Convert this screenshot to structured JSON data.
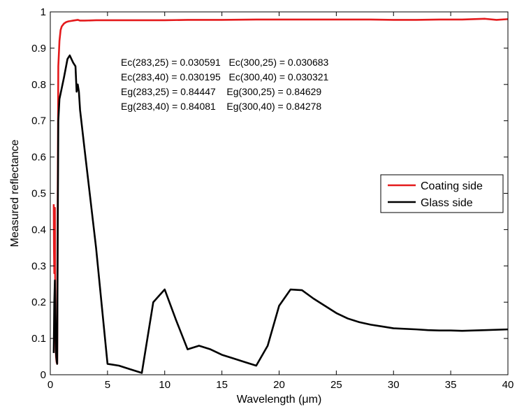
{
  "chart_data": {
    "type": "line",
    "title": "",
    "xlabel": "Wavelength (μm)",
    "ylabel": "Measured reflectance",
    "xlim": [
      0,
      40
    ],
    "ylim": [
      0,
      1
    ],
    "xticks": [
      0,
      5,
      10,
      15,
      20,
      25,
      30,
      35,
      40
    ],
    "xtick_labels": [
      "0",
      "5",
      "10",
      "15",
      "20",
      "25",
      "30",
      "35",
      "40"
    ],
    "yticks": [
      0,
      0.1,
      0.2,
      0.3,
      0.4,
      0.5,
      0.6,
      0.7,
      0.8,
      0.9,
      1
    ],
    "ytick_labels": [
      "0",
      "0.1",
      "0.2",
      "0.3",
      "0.4",
      "0.5",
      "0.6",
      "0.7",
      "0.8",
      "0.9",
      "1"
    ],
    "grid": false,
    "legend_position": "center-right",
    "annotations": [
      "Ec(283,25) = 0.030591   Ec(300,25) = 0.030683",
      "Ec(283,40) = 0.030195   Ec(300,40) = 0.030321",
      "Eg(283,25) = 0.84447    Eg(300,25) = 0.84629",
      "Eg(283,40) = 0.84081    Eg(300,40) = 0.84278"
    ],
    "series": [
      {
        "name": "Coating side",
        "color": "#e41a1c",
        "x": [
          0.3,
          0.32,
          0.35,
          0.38,
          0.4,
          0.42,
          0.45,
          0.5,
          0.55,
          0.6,
          0.65,
          0.7,
          0.8,
          0.9,
          1.0,
          1.2,
          1.4,
          1.6,
          1.8,
          2.0,
          2.2,
          2.4,
          2.6,
          3,
          4,
          5,
          6,
          8,
          10,
          12,
          15,
          18,
          20,
          22,
          25,
          28,
          30,
          32,
          34,
          36,
          38,
          39,
          40
        ],
        "y": [
          0.47,
          0.35,
          0.28,
          0.42,
          0.46,
          0.3,
          0.1,
          0.05,
          0.035,
          0.03,
          0.5,
          0.85,
          0.92,
          0.95,
          0.96,
          0.968,
          0.972,
          0.974,
          0.975,
          0.976,
          0.977,
          0.978,
          0.976,
          0.976,
          0.977,
          0.977,
          0.977,
          0.977,
          0.977,
          0.978,
          0.978,
          0.979,
          0.979,
          0.979,
          0.979,
          0.979,
          0.978,
          0.978,
          0.979,
          0.979,
          0.981,
          0.978,
          0.98
        ]
      },
      {
        "name": "Glass side",
        "color": "#000000",
        "x": [
          0.3,
          0.35,
          0.4,
          0.45,
          0.5,
          0.55,
          0.6,
          0.65,
          0.7,
          0.8,
          1.0,
          1.2,
          1.5,
          1.7,
          2.0,
          2.2,
          2.3,
          2.4,
          2.5,
          2.6,
          3,
          4,
          5,
          6,
          7,
          8,
          9,
          10,
          11,
          12,
          13,
          14,
          15,
          16,
          17,
          18,
          19,
          20,
          21,
          22,
          23,
          24,
          25,
          26,
          27,
          28,
          29,
          30,
          32,
          33,
          34,
          35,
          36,
          38,
          40
        ],
        "y": [
          0.06,
          0.2,
          0.26,
          0.15,
          0.06,
          0.04,
          0.03,
          0.4,
          0.7,
          0.76,
          0.79,
          0.82,
          0.87,
          0.88,
          0.86,
          0.85,
          0.78,
          0.8,
          0.78,
          0.73,
          0.62,
          0.35,
          0.03,
          0.025,
          0.015,
          0.005,
          0.2,
          0.235,
          0.15,
          0.07,
          0.08,
          0.07,
          0.055,
          0.045,
          0.035,
          0.025,
          0.08,
          0.19,
          0.235,
          0.233,
          0.21,
          0.19,
          0.17,
          0.155,
          0.145,
          0.138,
          0.133,
          0.128,
          0.125,
          0.123,
          0.122,
          0.122,
          0.121,
          0.123,
          0.125
        ]
      }
    ]
  }
}
